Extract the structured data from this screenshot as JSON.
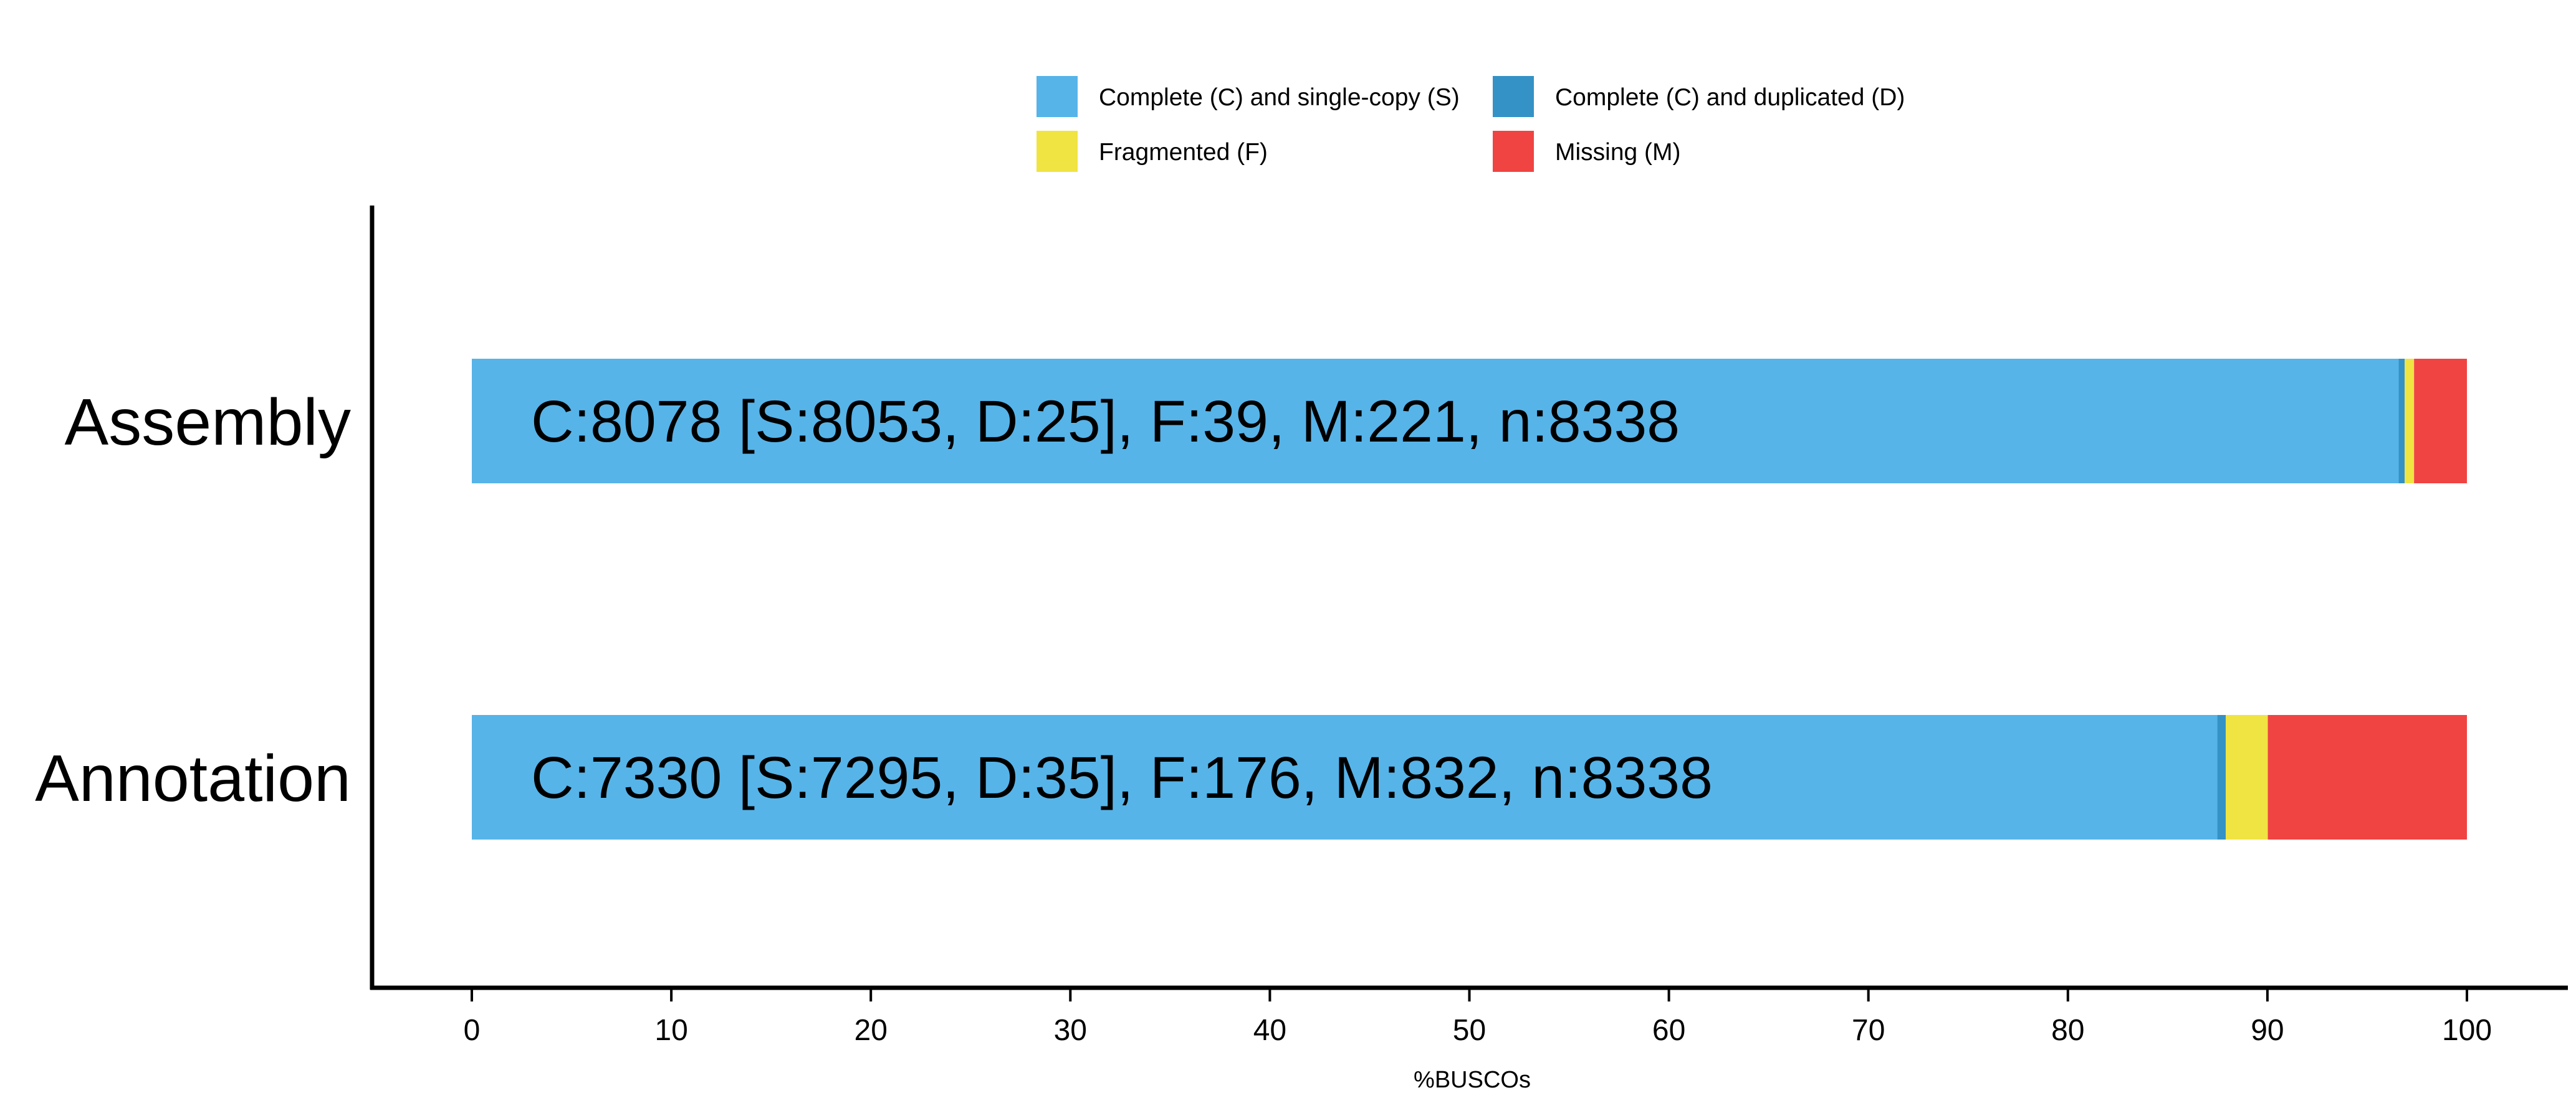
{
  "chart_data": {
    "type": "bar",
    "orientation": "horizontal",
    "stacked": true,
    "categories": [
      "Assembly",
      "Annotation"
    ],
    "series": [
      {
        "name": "Complete (C) and single-copy (S)",
        "color": "#56B4E9",
        "values": [
          96.58,
          87.49
        ]
      },
      {
        "name": "Complete (C) and duplicated (D)",
        "color": "#3492C7",
        "values": [
          0.3,
          0.42
        ]
      },
      {
        "name": "Fragmented (F)",
        "color": "#F0E442",
        "values": [
          0.47,
          2.11
        ]
      },
      {
        "name": "Missing (M)",
        "color": "#F04442",
        "values": [
          2.65,
          9.98
        ]
      }
    ],
    "bar_labels": [
      "C:8078 [S:8053, D:25], F:39, M:221, n:8338",
      "C:7330 [S:7295, D:35], F:176, M:832, n:8338"
    ],
    "xlabel": "%BUSCOs",
    "ylabel": "",
    "xlim": [
      -5,
      105
    ],
    "xticks": [
      0,
      10,
      20,
      30,
      40,
      50,
      60,
      70,
      80,
      90,
      100
    ],
    "grid": false,
    "legend_position": "top-center"
  }
}
